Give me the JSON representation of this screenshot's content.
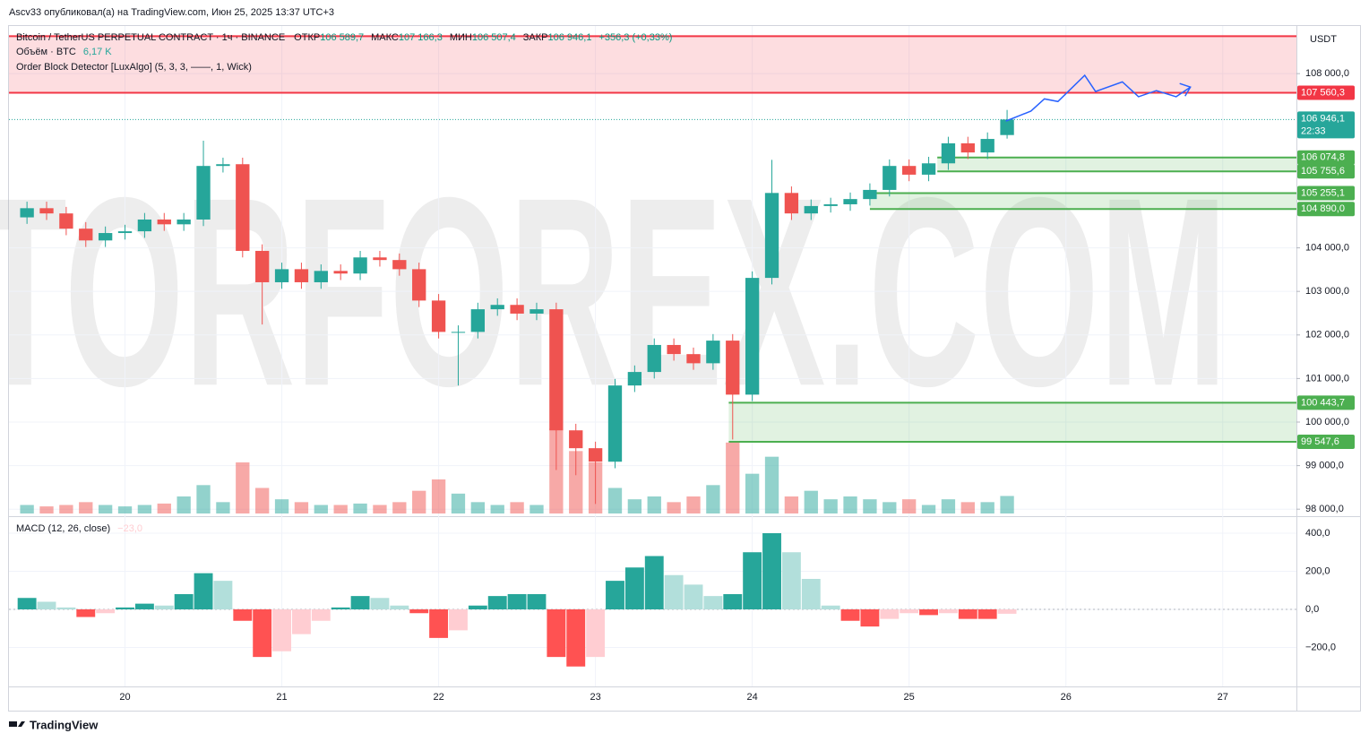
{
  "header": {
    "published": "Ascv33 опубликовал(а) на TradingView.com, Июн 25, 2025 13:37 UTC+3",
    "footer": "TradingView"
  },
  "chart_data": [
    {
      "type": "candlestick",
      "symbol": "Bitcoin / TetherUS PERPETUAL CONTRACT · 1ч · BINANCE",
      "ohlc_legend": [
        {
          "label": "ОТКР",
          "value": "106 589,7"
        },
        {
          "label": "МАКС",
          "value": "107 166,3"
        },
        {
          "label": "МИН",
          "value": "106 507,4"
        },
        {
          "label": "ЗАКР",
          "value": "106 946,1"
        }
      ],
      "change": "+356,3 (+0,33%)",
      "currency": "USDT",
      "indicator": "Order Block Detector [LuxAlgo] (5, 3, 3, ——, 1, Wick)",
      "watermark": "TORFOREX.COM",
      "up_color": "#26a69a",
      "down_color": "#ef5350",
      "x": [
        19.375,
        19.5,
        19.625,
        19.75,
        19.875,
        20,
        20.125,
        20.25,
        20.375,
        20.5,
        20.625,
        20.75,
        20.875,
        21,
        21.125,
        21.25,
        21.375,
        21.5,
        21.625,
        21.75,
        21.875,
        22,
        22.125,
        22.25,
        22.375,
        22.5,
        22.625,
        22.75,
        22.875,
        23,
        23.125,
        23.25,
        23.375,
        23.5,
        23.625,
        23.75,
        23.875,
        24,
        24.125,
        24.25,
        24.375,
        24.5,
        24.625,
        24.75,
        24.875,
        25,
        25.125,
        25.25,
        25.375,
        25.5,
        25.625
      ],
      "open": [
        104700,
        104910,
        104790,
        104440,
        104170,
        104340,
        104380,
        104650,
        104540,
        104650,
        105880,
        105920,
        103930,
        103210,
        103510,
        103210,
        103470,
        103410,
        103780,
        103720,
        103510,
        102790,
        102070,
        102070,
        102590,
        102690,
        102490,
        102590,
        99810,
        99400,
        99090,
        100840,
        101150,
        101770,
        101560,
        101350,
        101870,
        100630,
        103310,
        105260,
        104790,
        104960,
        105000,
        105120,
        105330,
        105880,
        105680,
        105940,
        106400,
        106190,
        106589.7
      ],
      "high": [
        105060,
        105060,
        104940,
        104590,
        104490,
        104530,
        104800,
        104800,
        104800,
        106460,
        106070,
        106070,
        104080,
        103660,
        103660,
        103620,
        103620,
        103930,
        103930,
        103870,
        103660,
        102940,
        102220,
        102740,
        102840,
        102840,
        102740,
        102740,
        99960,
        99550,
        100990,
        101300,
        101920,
        101920,
        101710,
        102020,
        102020,
        103460,
        106020,
        105410,
        105110,
        105150,
        105270,
        105480,
        106030,
        106030,
        106090,
        106550,
        106550,
        106650,
        107166.3
      ],
      "low": [
        104550,
        104640,
        104290,
        104020,
        104020,
        104190,
        104230,
        104390,
        104390,
        104500,
        105730,
        103780,
        102240,
        103060,
        103060,
        103060,
        103260,
        103260,
        103570,
        103360,
        102640,
        101920,
        100840,
        101920,
        102440,
        102340,
        102340,
        98900,
        98780,
        98120,
        98940,
        100690,
        101000,
        101410,
        101200,
        101200,
        99600,
        100480,
        103160,
        104640,
        104640,
        104810,
        104850,
        104970,
        105180,
        105530,
        105530,
        105790,
        106040,
        106040,
        106507.4
      ],
      "close": [
        104910,
        104790,
        104440,
        104170,
        104340,
        104380,
        104650,
        104540,
        104650,
        105880,
        105920,
        103930,
        103210,
        103510,
        103210,
        103470,
        103410,
        103780,
        103720,
        103510,
        102790,
        102070,
        102070,
        102590,
        102690,
        102490,
        102590,
        99810,
        99400,
        99090,
        100840,
        101150,
        101770,
        101560,
        101350,
        101870,
        100630,
        103310,
        105260,
        104790,
        104960,
        105000,
        105120,
        105330,
        105880,
        105680,
        105940,
        106400,
        106190,
        106500,
        106946.1
      ],
      "volume": {
        "name": "Объём · BTC",
        "value_label": "6,17 K",
        "values": [
          3,
          2.5,
          3,
          4,
          3,
          2.5,
          3,
          3.5,
          6,
          10,
          4,
          18,
          9,
          5,
          4,
          3,
          3,
          3.5,
          3,
          4,
          8,
          12,
          7,
          4,
          3,
          4,
          3,
          30,
          22,
          18,
          9,
          5,
          6,
          4,
          6,
          10,
          25,
          14,
          20,
          6,
          8,
          5,
          6,
          5,
          4,
          5,
          3,
          5,
          4,
          4,
          6.17
        ]
      },
      "xlim": [
        19.26,
        27.47
      ],
      "xticks": [
        20,
        21,
        22,
        23,
        24,
        25,
        26,
        27
      ],
      "ylim": [
        97860,
        108970
      ],
      "yticks": [
        {
          "value": 98000,
          "label": "98 000,0"
        },
        {
          "value": 99000,
          "label": "99 000,0"
        },
        {
          "value": 100000,
          "label": "100 000,0"
        },
        {
          "value": 101000,
          "label": "101 000,0"
        },
        {
          "value": 102000,
          "label": "102 000,0"
        },
        {
          "value": 103000,
          "label": "103 000,0"
        },
        {
          "value": 104000,
          "label": "104 000,0"
        },
        {
          "value": 108000,
          "label": "108 000,0"
        }
      ],
      "grid": true,
      "zones": [
        {
          "top": 108860,
          "bottom": 107560.3,
          "bottom_label": "107 560,3",
          "start": 19.26,
          "color": "#f23645"
        },
        {
          "top": 106074.8,
          "bottom": 105755.6,
          "top_label": "106 074,8",
          "bottom_label": "105 755,6",
          "start": 25.18,
          "color": "#4caf50"
        },
        {
          "top": 105255.1,
          "bottom": 104890.0,
          "top_label": "105 255,1",
          "bottom_label": "104 890,0",
          "start": 24.75,
          "color": "#4caf50"
        },
        {
          "top": 100443.7,
          "bottom": 99547.6,
          "top_label": "100 443,7",
          "bottom_label": "99 547,6",
          "start": 23.85,
          "color": "#4caf50"
        }
      ],
      "last_price_label": "106 946,1",
      "countdown": "22:33",
      "forecast": {
        "color": "#2962ff",
        "x": [
          25.617,
          25.777,
          25.863,
          25.949,
          26.12,
          26.189,
          26.36,
          26.463,
          26.577,
          26.703,
          26.794
        ],
        "y": [
          106910,
          107140,
          107420,
          107360,
          107960,
          107590,
          107810,
          107470,
          107610,
          107470,
          107690
        ]
      }
    },
    {
      "type": "bar",
      "title": "MACD (12, 26, close)",
      "value_label": "−23,0",
      "x": [
        19.375,
        19.5,
        19.625,
        19.75,
        19.875,
        20,
        20.125,
        20.25,
        20.375,
        20.5,
        20.625,
        20.75,
        20.875,
        21,
        21.125,
        21.25,
        21.375,
        21.5,
        21.625,
        21.75,
        21.875,
        22,
        22.125,
        22.25,
        22.375,
        22.5,
        22.625,
        22.75,
        22.875,
        23,
        23.125,
        23.25,
        23.375,
        23.5,
        23.625,
        23.75,
        23.875,
        24,
        24.125,
        24.25,
        24.375,
        24.5,
        24.625,
        24.75,
        24.875,
        25,
        25.125,
        25.25,
        25.375,
        25.5,
        25.625
      ],
      "values": [
        60,
        40,
        10,
        -40,
        -20,
        10,
        30,
        20,
        80,
        190,
        150,
        -60,
        -250,
        -220,
        -130,
        -60,
        10,
        70,
        60,
        20,
        -20,
        -150,
        -110,
        20,
        70,
        80,
        80,
        -250,
        -300,
        -250,
        150,
        220,
        280,
        180,
        130,
        70,
        80,
        300,
        400,
        300,
        160,
        20,
        -60,
        -90,
        -50,
        -20,
        -30,
        -20,
        -50,
        -50,
        -23
      ],
      "colors": {
        "up_strong": "#26a69a",
        "up_weak": "#b2dfdb",
        "down_strong": "#ff5252",
        "down_weak": "#ffcdd2"
      },
      "ylim": [
        -400,
        480
      ],
      "yticks": [
        {
          "value": -200,
          "label": "−200,0"
        },
        {
          "value": 0,
          "label": "0,0"
        },
        {
          "value": 200,
          "label": "200,0"
        },
        {
          "value": 400,
          "label": "400,0"
        }
      ]
    }
  ]
}
